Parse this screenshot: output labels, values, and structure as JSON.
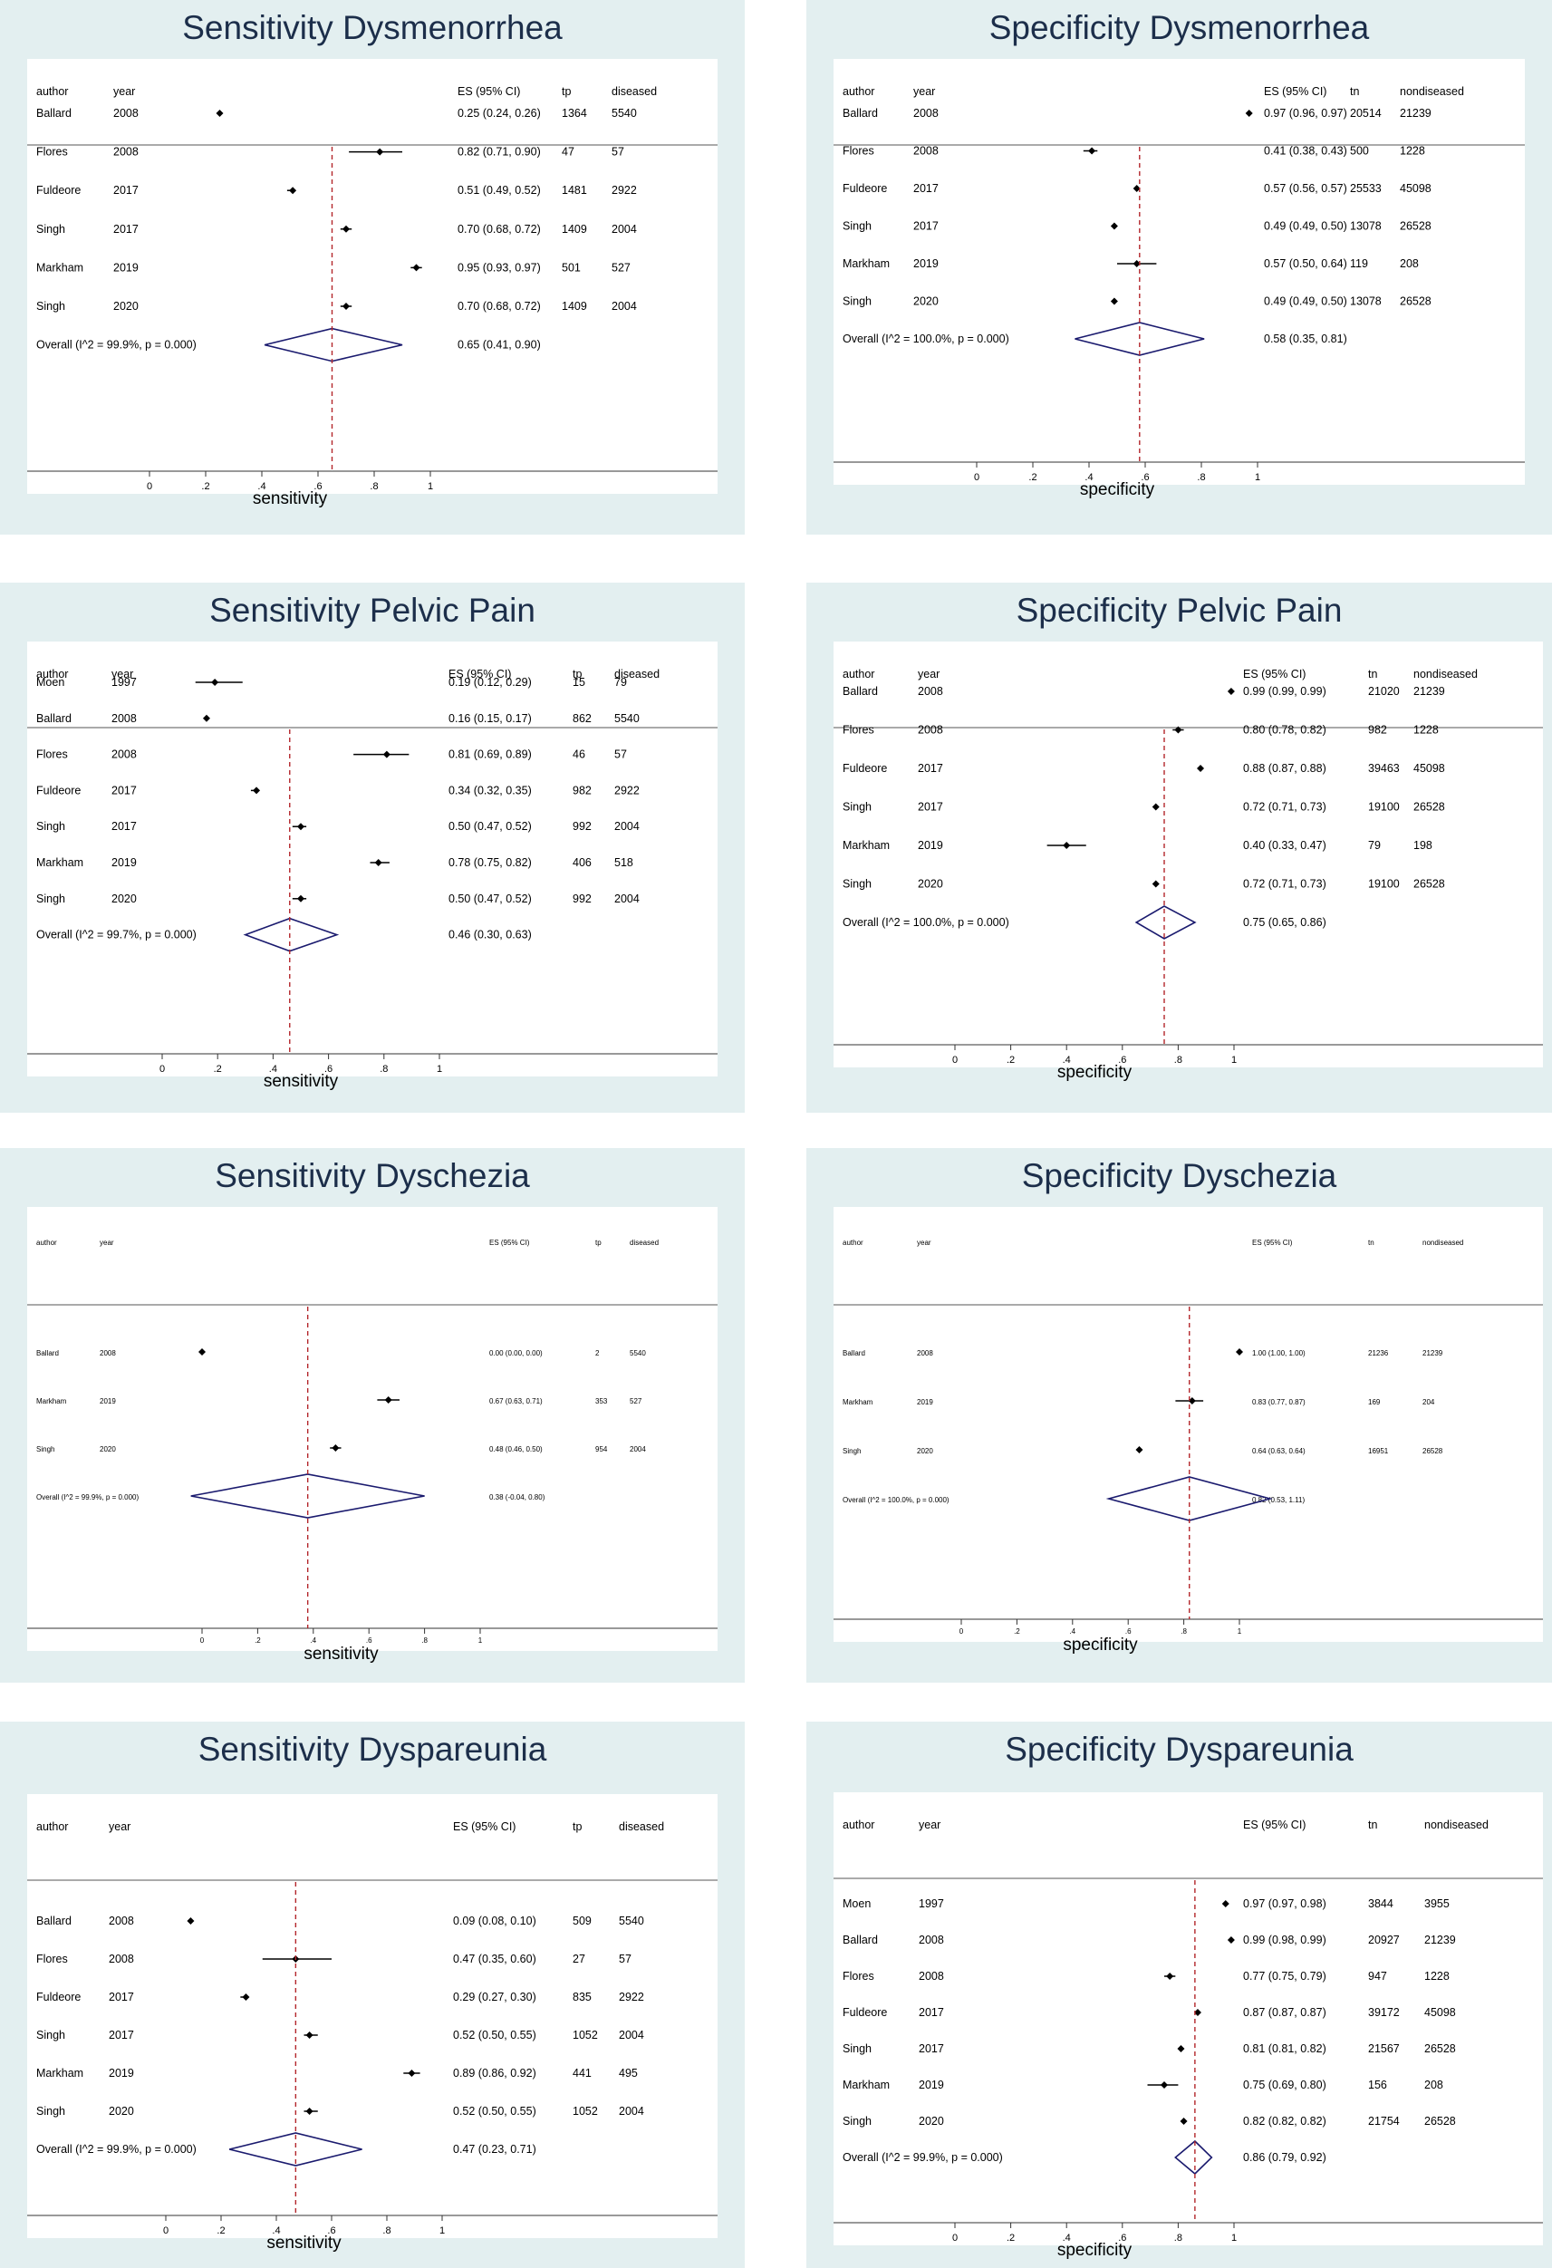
{
  "chart_data": [
    {
      "type": "forest",
      "title": "Sensitivity Dysmenorrhea",
      "xlabel": "sensitivity",
      "xlim": [
        0,
        1
      ],
      "xticks": [
        "0",
        ".2",
        ".4",
        ".6",
        ".8",
        "1"
      ],
      "headers": {
        "author": "author",
        "year": "year",
        "es": "ES (95% CI)",
        "count": "tp",
        "total": "diseased"
      },
      "studies": [
        {
          "author": "Ballard",
          "year": "2008",
          "es": 0.25,
          "lo": 0.24,
          "hi": 0.26,
          "label": "0.25 (0.24, 0.26)",
          "count": "1364",
          "total": "5540"
        },
        {
          "author": "Flores",
          "year": "2008",
          "es": 0.82,
          "lo": 0.71,
          "hi": 0.9,
          "label": "0.82 (0.71, 0.90)",
          "count": "47",
          "total": "57"
        },
        {
          "author": "Fuldeore",
          "year": "2017",
          "es": 0.51,
          "lo": 0.49,
          "hi": 0.52,
          "label": "0.51 (0.49, 0.52)",
          "count": "1481",
          "total": "2922"
        },
        {
          "author": "Singh",
          "year": "2017",
          "es": 0.7,
          "lo": 0.68,
          "hi": 0.72,
          "label": "0.70 (0.68, 0.72)",
          "count": "1409",
          "total": "2004"
        },
        {
          "author": "Markham",
          "year": "2019",
          "es": 0.95,
          "lo": 0.93,
          "hi": 0.97,
          "label": "0.95 (0.93, 0.97)",
          "count": "501",
          "total": "527"
        },
        {
          "author": "Singh",
          "year": "2020",
          "es": 0.7,
          "lo": 0.68,
          "hi": 0.72,
          "label": "0.70 (0.68, 0.72)",
          "count": "1409",
          "total": "2004"
        }
      ],
      "overall": {
        "text": "Overall  (I^2 = 99.9%, p = 0.000)",
        "es": 0.65,
        "lo": 0.41,
        "hi": 0.9,
        "label": "0.65 (0.41, 0.90)"
      }
    },
    {
      "type": "forest",
      "title": "Specificity Dysmenorrhea",
      "xlabel": "specificity",
      "xlim": [
        0,
        1
      ],
      "xticks": [
        "0",
        ".2",
        ".4",
        ".6",
        ".8",
        "1"
      ],
      "headers": {
        "author": "author",
        "year": "year",
        "es": "ES (95% CI)",
        "count": "tn",
        "total": "nondiseased"
      },
      "studies": [
        {
          "author": "Ballard",
          "year": "2008",
          "es": 0.97,
          "lo": 0.96,
          "hi": 0.97,
          "label": "0.97 (0.96, 0.97)",
          "count": "20514",
          "total": "21239"
        },
        {
          "author": "Flores",
          "year": "2008",
          "es": 0.41,
          "lo": 0.38,
          "hi": 0.43,
          "label": "0.41 (0.38, 0.43)",
          "count": "500",
          "total": "1228"
        },
        {
          "author": "Fuldeore",
          "year": "2017",
          "es": 0.57,
          "lo": 0.56,
          "hi": 0.57,
          "label": "0.57 (0.56, 0.57)",
          "count": "25533",
          "total": "45098"
        },
        {
          "author": "Singh",
          "year": "2017",
          "es": 0.49,
          "lo": 0.49,
          "hi": 0.5,
          "label": "0.49 (0.49, 0.50)",
          "count": "13078",
          "total": "26528"
        },
        {
          "author": "Markham",
          "year": "2019",
          "es": 0.57,
          "lo": 0.5,
          "hi": 0.64,
          "label": "0.57 (0.50, 0.64)",
          "count": "119",
          "total": "208"
        },
        {
          "author": "Singh",
          "year": "2020",
          "es": 0.49,
          "lo": 0.49,
          "hi": 0.5,
          "label": "0.49 (0.49, 0.50)",
          "count": "13078",
          "total": "26528"
        }
      ],
      "overall": {
        "text": "Overall  (I^2 = 100.0%, p = 0.000)",
        "es": 0.58,
        "lo": 0.35,
        "hi": 0.81,
        "label": "0.58 (0.35, 0.81)"
      }
    },
    {
      "type": "forest",
      "title": "Sensitivity Pelvic Pain",
      "xlabel": "sensitivity",
      "xlim": [
        0,
        1
      ],
      "xticks": [
        "0",
        ".2",
        ".4",
        ".6",
        ".8",
        "1"
      ],
      "headers": {
        "author": "author",
        "year": "year",
        "es": "ES (95% CI)",
        "count": "tp",
        "total": "diseased"
      },
      "studies": [
        {
          "author": "Moen",
          "year": "1997",
          "es": 0.19,
          "lo": 0.12,
          "hi": 0.29,
          "label": "0.19 (0.12, 0.29)",
          "count": "15",
          "total": "79"
        },
        {
          "author": "Ballard",
          "year": "2008",
          "es": 0.16,
          "lo": 0.15,
          "hi": 0.17,
          "label": "0.16 (0.15, 0.17)",
          "count": "862",
          "total": "5540"
        },
        {
          "author": "Flores",
          "year": "2008",
          "es": 0.81,
          "lo": 0.69,
          "hi": 0.89,
          "label": "0.81 (0.69, 0.89)",
          "count": "46",
          "total": "57"
        },
        {
          "author": "Fuldeore",
          "year": "2017",
          "es": 0.34,
          "lo": 0.32,
          "hi": 0.35,
          "label": "0.34 (0.32, 0.35)",
          "count": "982",
          "total": "2922"
        },
        {
          "author": "Singh",
          "year": "2017",
          "es": 0.5,
          "lo": 0.47,
          "hi": 0.52,
          "label": "0.50 (0.47, 0.52)",
          "count": "992",
          "total": "2004"
        },
        {
          "author": "Markham",
          "year": "2019",
          "es": 0.78,
          "lo": 0.75,
          "hi": 0.82,
          "label": "0.78 (0.75, 0.82)",
          "count": "406",
          "total": "518"
        },
        {
          "author": "Singh",
          "year": "2020",
          "es": 0.5,
          "lo": 0.47,
          "hi": 0.52,
          "label": "0.50 (0.47, 0.52)",
          "count": "992",
          "total": "2004"
        }
      ],
      "overall": {
        "text": "Overall  (I^2 = 99.7%, p = 0.000)",
        "es": 0.46,
        "lo": 0.3,
        "hi": 0.63,
        "label": "0.46 (0.30, 0.63)"
      }
    },
    {
      "type": "forest",
      "title": "Specificity Pelvic Pain",
      "xlabel": "specificity",
      "xlim": [
        0,
        1
      ],
      "xticks": [
        "0",
        ".2",
        ".4",
        ".6",
        ".8",
        "1"
      ],
      "headers": {
        "author": "author",
        "year": "year",
        "es": "ES (95% CI)",
        "count": "tn",
        "total": "nondiseased"
      },
      "studies": [
        {
          "author": "Ballard",
          "year": "2008",
          "es": 0.99,
          "lo": 0.99,
          "hi": 0.99,
          "label": "0.99 (0.99, 0.99)",
          "count": "21020",
          "total": "21239"
        },
        {
          "author": "Flores",
          "year": "2008",
          "es": 0.8,
          "lo": 0.78,
          "hi": 0.82,
          "label": "0.80 (0.78, 0.82)",
          "count": "982",
          "total": "1228"
        },
        {
          "author": "Fuldeore",
          "year": "2017",
          "es": 0.88,
          "lo": 0.87,
          "hi": 0.88,
          "label": "0.88 (0.87, 0.88)",
          "count": "39463",
          "total": "45098"
        },
        {
          "author": "Singh",
          "year": "2017",
          "es": 0.72,
          "lo": 0.71,
          "hi": 0.73,
          "label": "0.72 (0.71, 0.73)",
          "count": "19100",
          "total": "26528"
        },
        {
          "author": "Markham",
          "year": "2019",
          "es": 0.4,
          "lo": 0.33,
          "hi": 0.47,
          "label": "0.40 (0.33, 0.47)",
          "count": "79",
          "total": "198"
        },
        {
          "author": "Singh",
          "year": "2020",
          "es": 0.72,
          "lo": 0.71,
          "hi": 0.73,
          "label": "0.72 (0.71, 0.73)",
          "count": "19100",
          "total": "26528"
        }
      ],
      "overall": {
        "text": "Overall  (I^2 = 100.0%, p = 0.000)",
        "es": 0.75,
        "lo": 0.65,
        "hi": 0.86,
        "label": "0.75 (0.65, 0.86)"
      }
    },
    {
      "type": "forest",
      "title": "Sensitivity Dyschezia",
      "xlabel": "sensitivity",
      "xlim": [
        0,
        1
      ],
      "xticks": [
        "0",
        ".2",
        ".4",
        ".6",
        ".8",
        "1"
      ],
      "headers": {
        "author": "author",
        "year": "year",
        "es": "ES (95% CI)",
        "count": "tp",
        "total": "diseased"
      },
      "studies": [
        {
          "author": "Ballard",
          "year": "2008",
          "es": 0.0,
          "lo": 0.0,
          "hi": 0.0,
          "label": "0.00 (0.00, 0.00)",
          "count": "2",
          "total": "5540"
        },
        {
          "author": "Markham",
          "year": "2019",
          "es": 0.67,
          "lo": 0.63,
          "hi": 0.71,
          "label": "0.67 (0.63, 0.71)",
          "count": "353",
          "total": "527"
        },
        {
          "author": "Singh",
          "year": "2020",
          "es": 0.48,
          "lo": 0.46,
          "hi": 0.5,
          "label": "0.48 (0.46, 0.50)",
          "count": "954",
          "total": "2004"
        }
      ],
      "overall": {
        "text": "Overall  (I^2 = 99.9%, p = 0.000)",
        "es": 0.38,
        "lo": -0.04,
        "hi": 0.8,
        "label": "0.38 (-0.04, 0.80)"
      }
    },
    {
      "type": "forest",
      "title": "Specificity Dyschezia",
      "xlabel": "specificity",
      "xlim": [
        0,
        1
      ],
      "xticks": [
        "0",
        ".2",
        ".4",
        ".6",
        ".8",
        "1"
      ],
      "headers": {
        "author": "author",
        "year": "year",
        "es": "ES (95% CI)",
        "count": "tn",
        "total": "nondiseased"
      },
      "studies": [
        {
          "author": "Ballard",
          "year": "2008",
          "es": 1.0,
          "lo": 1.0,
          "hi": 1.0,
          "label": "1.00 (1.00, 1.00)",
          "count": "21236",
          "total": "21239"
        },
        {
          "author": "Markham",
          "year": "2019",
          "es": 0.83,
          "lo": 0.77,
          "hi": 0.87,
          "label": "0.83 (0.77, 0.87)",
          "count": "169",
          "total": "204"
        },
        {
          "author": "Singh",
          "year": "2020",
          "es": 0.64,
          "lo": 0.63,
          "hi": 0.64,
          "label": "0.64 (0.63, 0.64)",
          "count": "16951",
          "total": "26528"
        }
      ],
      "overall": {
        "text": "Overall  (I^2 = 100.0%, p = 0.000)",
        "es": 0.82,
        "lo": 0.53,
        "hi": 1.11,
        "label": "0.82 (0.53, 1.11)"
      }
    },
    {
      "type": "forest",
      "title": "Sensitivity Dyspareunia",
      "xlabel": "sensitivity",
      "xlim": [
        0,
        1
      ],
      "xticks": [
        "0",
        ".2",
        ".4",
        ".6",
        ".8",
        "1"
      ],
      "headers": {
        "author": "author",
        "year": "year",
        "es": "ES (95% CI)",
        "count": "tp",
        "total": "diseased"
      },
      "studies": [
        {
          "author": "Ballard",
          "year": "2008",
          "es": 0.09,
          "lo": 0.08,
          "hi": 0.1,
          "label": "0.09 (0.08, 0.10)",
          "count": "509",
          "total": "5540"
        },
        {
          "author": "Flores",
          "year": "2008",
          "es": 0.47,
          "lo": 0.35,
          "hi": 0.6,
          "label": "0.47 (0.35, 0.60)",
          "count": "27",
          "total": "57"
        },
        {
          "author": "Fuldeore",
          "year": "2017",
          "es": 0.29,
          "lo": 0.27,
          "hi": 0.3,
          "label": "0.29 (0.27, 0.30)",
          "count": "835",
          "total": "2922"
        },
        {
          "author": "Singh",
          "year": "2017",
          "es": 0.52,
          "lo": 0.5,
          "hi": 0.55,
          "label": "0.52 (0.50, 0.55)",
          "count": "1052",
          "total": "2004"
        },
        {
          "author": "Markham",
          "year": "2019",
          "es": 0.89,
          "lo": 0.86,
          "hi": 0.92,
          "label": "0.89 (0.86, 0.92)",
          "count": "441",
          "total": "495"
        },
        {
          "author": "Singh",
          "year": "2020",
          "es": 0.52,
          "lo": 0.5,
          "hi": 0.55,
          "label": "0.52 (0.50, 0.55)",
          "count": "1052",
          "total": "2004"
        }
      ],
      "overall": {
        "text": "Overall  (I^2 = 99.9%, p = 0.000)",
        "es": 0.47,
        "lo": 0.23,
        "hi": 0.71,
        "label": "0.47 (0.23, 0.71)"
      }
    },
    {
      "type": "forest",
      "title": "Specificity Dyspareunia",
      "xlabel": "specificity",
      "xlim": [
        0,
        1
      ],
      "xticks": [
        "0",
        ".2",
        ".4",
        ".6",
        ".8",
        "1"
      ],
      "headers": {
        "author": "author",
        "year": "year",
        "es": "ES (95% CI)",
        "count": "tn",
        "total": "nondiseased"
      },
      "studies": [
        {
          "author": "Moen",
          "year": "1997",
          "es": 0.97,
          "lo": 0.97,
          "hi": 0.98,
          "label": "0.97 (0.97, 0.98)",
          "count": "3844",
          "total": "3955"
        },
        {
          "author": "Ballard",
          "year": "2008",
          "es": 0.99,
          "lo": 0.98,
          "hi": 0.99,
          "label": "0.99 (0.98, 0.99)",
          "count": "20927",
          "total": "21239"
        },
        {
          "author": "Flores",
          "year": "2008",
          "es": 0.77,
          "lo": 0.75,
          "hi": 0.79,
          "label": "0.77 (0.75, 0.79)",
          "count": "947",
          "total": "1228"
        },
        {
          "author": "Fuldeore",
          "year": "2017",
          "es": 0.87,
          "lo": 0.87,
          "hi": 0.87,
          "label": "0.87 (0.87, 0.87)",
          "count": "39172",
          "total": "45098"
        },
        {
          "author": "Singh",
          "year": "2017",
          "es": 0.81,
          "lo": 0.81,
          "hi": 0.82,
          "label": "0.81 (0.81, 0.82)",
          "count": "21567",
          "total": "26528"
        },
        {
          "author": "Markham",
          "year": "2019",
          "es": 0.75,
          "lo": 0.69,
          "hi": 0.8,
          "label": "0.75 (0.69, 0.80)",
          "count": "156",
          "total": "208"
        },
        {
          "author": "Singh",
          "year": "2020",
          "es": 0.82,
          "lo": 0.82,
          "hi": 0.82,
          "label": "0.82 (0.82, 0.82)",
          "count": "21754",
          "total": "26528"
        }
      ],
      "overall": {
        "text": "Overall  (I^2 = 99.9%, p = 0.000)",
        "es": 0.86,
        "lo": 0.79,
        "hi": 0.92,
        "label": "0.86 (0.79, 0.92)"
      }
    }
  ],
  "colors": {
    "panel_background": "#e3eff0",
    "title_text": "#1c2e4a",
    "diamond": "#1a1a6e",
    "reference_line": "#b3262b",
    "point": "#000000"
  }
}
